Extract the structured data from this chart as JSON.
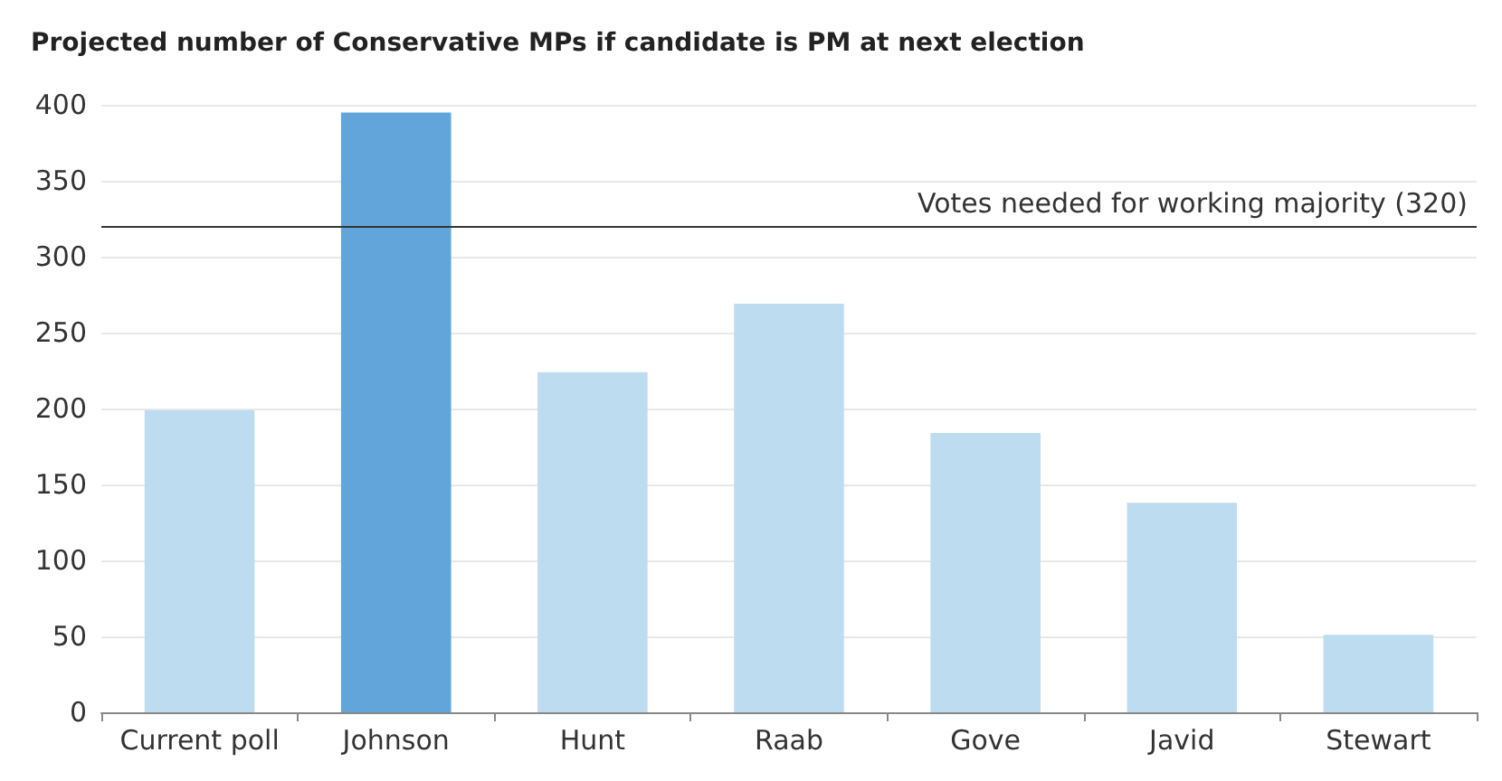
{
  "chart_data": {
    "type": "bar",
    "title": "Projected number of Conservative MPs if candidate is PM at next election",
    "categories": [
      "Current poll",
      "Johnson",
      "Hunt",
      "Raab",
      "Gove",
      "Javid",
      "Stewart"
    ],
    "values": [
      199,
      395,
      224,
      269,
      184,
      138,
      51
    ],
    "colors": [
      "#bedcf0",
      "#61a5da",
      "#bedcf0",
      "#bedcf0",
      "#bedcf0",
      "#bedcf0",
      "#bedcf0"
    ],
    "ylim": [
      0,
      400
    ],
    "yticks": [
      0,
      50,
      100,
      150,
      200,
      250,
      300,
      350,
      400
    ],
    "grid": "y",
    "ref_lines": [
      {
        "axis": "y",
        "value": 320,
        "label": "Votes needed for working majority (320)",
        "color": "#333333"
      }
    ]
  }
}
